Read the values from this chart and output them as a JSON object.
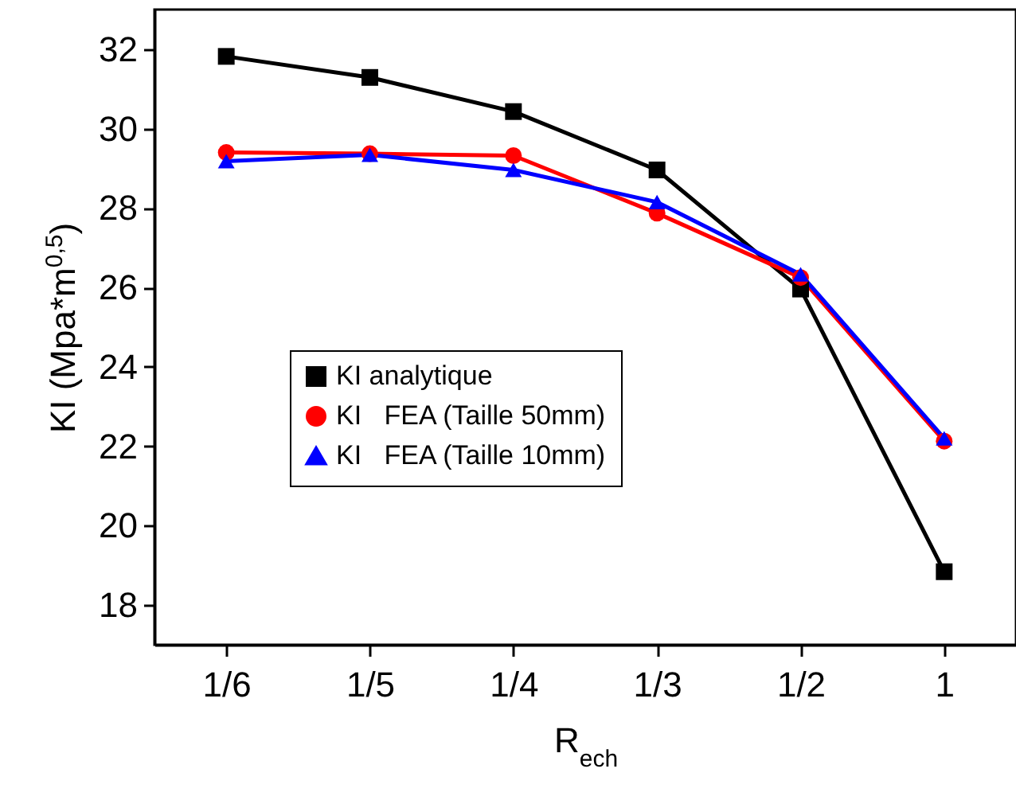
{
  "chart_data": {
    "type": "line",
    "xlabel": "R$_{ech}$",
    "ylabel": "KI (Mpa*m$^{0,5}$)",
    "categories": [
      "1/6",
      "1/5",
      "1/4",
      "1/3",
      "1/2",
      "1"
    ],
    "series": [
      {
        "name": "KI analytique",
        "color": "#000000",
        "marker": "square",
        "values": [
          31.82,
          31.29,
          30.43,
          28.96,
          25.96,
          18.84
        ]
      },
      {
        "name": "KI   FEA (Taille 50mm)",
        "color": "#ff0000",
        "marker": "circle",
        "values": [
          29.4,
          29.37,
          29.32,
          27.87,
          26.25,
          22.13
        ]
      },
      {
        "name": "KI   FEA (Taille 10mm)",
        "color": "#0000ff",
        "marker": "triangle",
        "values": [
          29.18,
          29.34,
          28.96,
          28.15,
          26.33,
          22.2
        ]
      }
    ],
    "ylim": [
      17,
      33
    ],
    "yticks": [
      18,
      20,
      22,
      24,
      26,
      28,
      30,
      32
    ],
    "grid": false,
    "legend": "left",
    "line_style": "solid"
  }
}
